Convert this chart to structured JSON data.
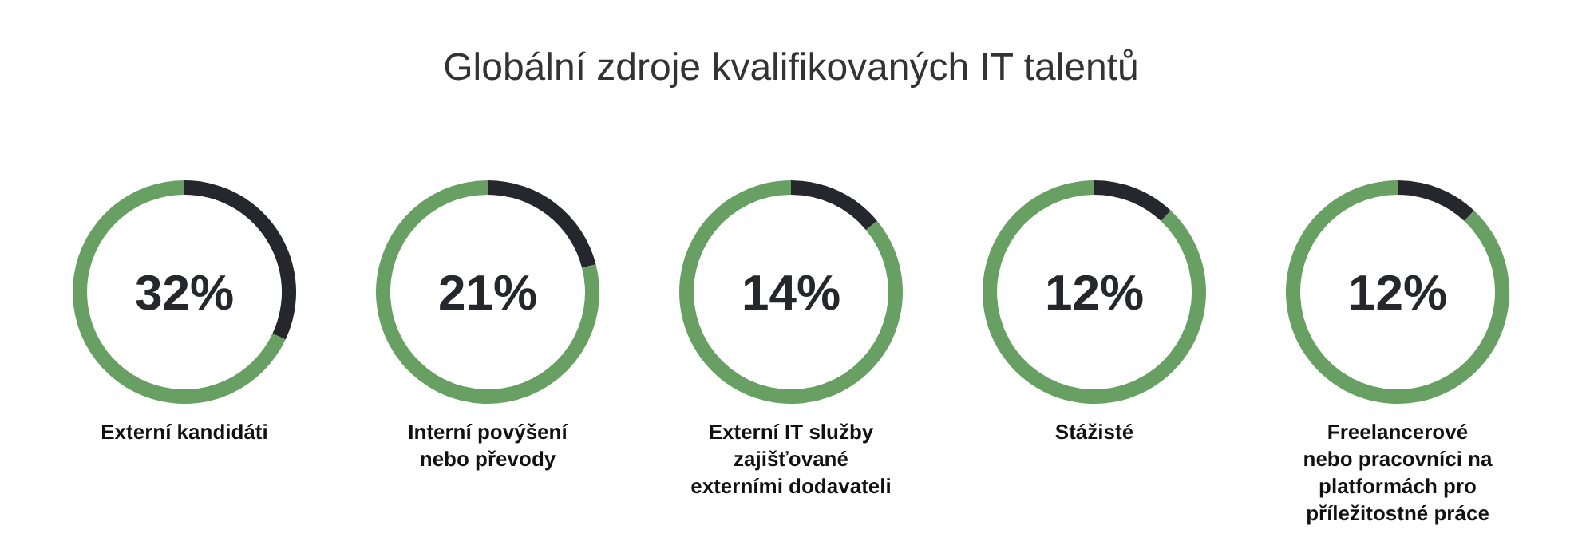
{
  "chart_data": [
    {
      "type": "other",
      "title": "Globální zdroje kvalifikovaných IT talentů"
    },
    {
      "type": "donut",
      "categories": [
        null,
        null
      ],
      "values": [
        32,
        68
      ],
      "colors": [
        "#25272c",
        "#689f63"
      ],
      "annotations": [
        "32%"
      ],
      "xlabel": "Externí kandidáti"
    },
    {
      "type": "donut",
      "categories": [
        null,
        null
      ],
      "values": [
        21,
        79
      ],
      "colors": [
        "#25272c",
        "#689f63"
      ],
      "annotations": [
        "21%"
      ],
      "xlabel": "Interní povýšení\nnebo převody"
    },
    {
      "type": "donut",
      "categories": [
        null,
        null
      ],
      "values": [
        14,
        86
      ],
      "colors": [
        "#25272c",
        "#689f63"
      ],
      "annotations": [
        "14%"
      ],
      "xlabel": "Externí IT služby\nzajišťované\nexterními dodavateli"
    },
    {
      "type": "donut",
      "categories": [
        null,
        null
      ],
      "values": [
        12,
        88
      ],
      "colors": [
        "#25272c",
        "#689f63"
      ],
      "annotations": [
        "12%"
      ],
      "xlabel": "Stážisté"
    },
    {
      "type": "donut",
      "categories": [
        null,
        null
      ],
      "values": [
        12,
        88
      ],
      "colors": [
        "#25272c",
        "#689f63"
      ],
      "annotations": [
        "12%"
      ],
      "xlabel": "Freelancerové\nnebo pracovníci na\nplatformách pro\npříležitostné práce"
    }
  ]
}
